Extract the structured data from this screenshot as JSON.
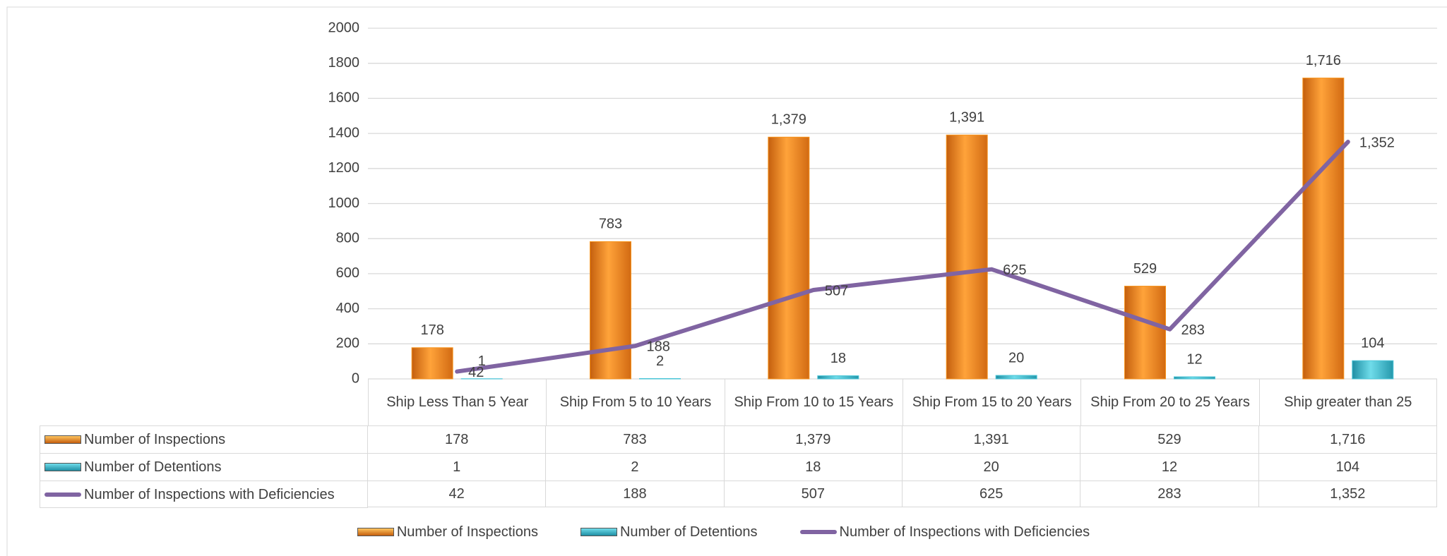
{
  "chart_data": {
    "type": "bar",
    "categories": [
      "Ship Less Than 5 Year",
      "Ship From 5 to 10 Years",
      "Ship From 10 to 15 Years",
      "Ship From 15 to 20 Years",
      "Ship From 20 to 25 Years",
      "Ship greater than 25"
    ],
    "series": [
      {
        "name": "Number of Inspections",
        "type": "bar",
        "color": "#f7941d",
        "values": [
          178,
          783,
          1379,
          1391,
          529,
          1716
        ],
        "value_labels": [
          "178",
          "783",
          "1,379",
          "1,391",
          "529",
          "1,716"
        ]
      },
      {
        "name": "Number of Detentions",
        "type": "bar",
        "color": "#4bc6d8",
        "values": [
          1,
          2,
          18,
          20,
          12,
          104
        ],
        "value_labels": [
          "1",
          "2",
          "18",
          "20",
          "12",
          "104"
        ]
      },
      {
        "name": "Number of Inspections with Deficiencies",
        "type": "line",
        "color": "#8064a2",
        "values": [
          42,
          188,
          507,
          625,
          283,
          1352
        ],
        "value_labels": [
          "42",
          "188",
          "507",
          "625",
          "283",
          "1,352"
        ]
      }
    ],
    "ylim": [
      0,
      2000
    ],
    "yticks": [
      0,
      200,
      400,
      600,
      800,
      1000,
      1200,
      1400,
      1600,
      1800,
      2000
    ],
    "grid": true
  }
}
